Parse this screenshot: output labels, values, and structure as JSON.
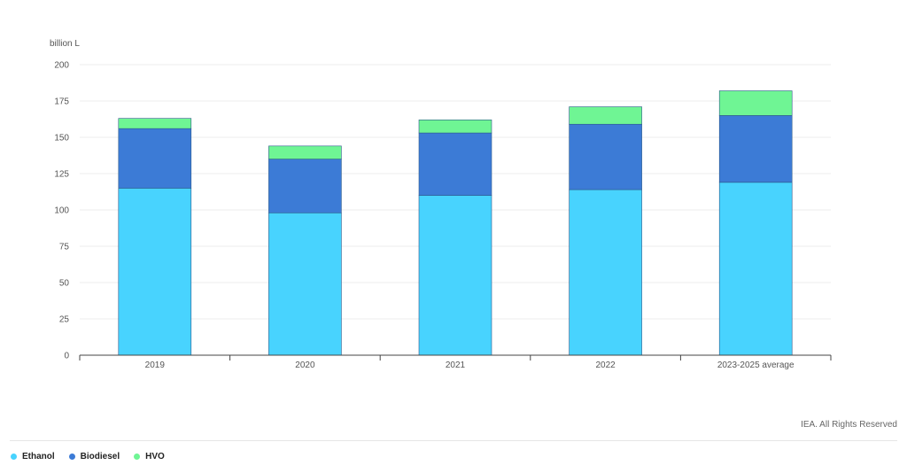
{
  "chart_data": {
    "type": "bar",
    "stacked": true,
    "unit_label": "billion L",
    "categories": [
      "2019",
      "2020",
      "2021",
      "2022",
      "2023-2025 average"
    ],
    "series": [
      {
        "name": "Ethanol",
        "color": "#48d3fe",
        "values": [
          115,
          98,
          110,
          114,
          119
        ]
      },
      {
        "name": "Biodiesel",
        "color": "#3c7bd6",
        "values": [
          41,
          37,
          43,
          45,
          46
        ]
      },
      {
        "name": "HVO",
        "color": "#6ff594",
        "values": [
          7,
          9,
          9,
          12,
          17
        ]
      }
    ],
    "ylim": [
      0,
      200
    ],
    "yticks": [
      0,
      25,
      50,
      75,
      100,
      125,
      150,
      175,
      200
    ],
    "grid": true,
    "legend_position": "bottom-left"
  },
  "credit": "IEA. All Rights Reserved"
}
